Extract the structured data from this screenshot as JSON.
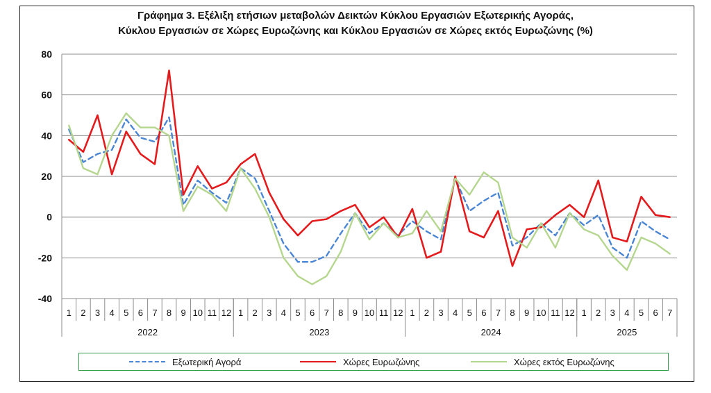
{
  "title_line1": "Γράφημα 3. Εξέλιξη  ετήσιων μεταβολών Δεικτών Κύκλου Εργασιών Εξωτερικής Αγοράς,",
  "title_line2": "Κύκλου Εργασιών σε Χώρες Ευρωζώνης και Κύκλου Εργασιών σε Χώρες εκτός Ευρωζώνης (%)",
  "chart_data": {
    "type": "line",
    "title": "Γράφημα 3. Εξέλιξη  ετήσιων μεταβολών Δεικτών Κύκλου Εργασιών Εξωτερικής Αγοράς, Κύκλου Εργασιών σε Χώρες Ευρωζώνης και Κύκλου Εργασιών σε Χώρες εκτός Ευρωζώνης (%)",
    "ylim": [
      -40,
      80
    ],
    "yticks": [
      -40,
      -20,
      0,
      20,
      40,
      60,
      80
    ],
    "grid": true,
    "legend_position": "bottom",
    "years": [
      {
        "label": "2022",
        "months": 12
      },
      {
        "label": "2023",
        "months": 12
      },
      {
        "label": "2024",
        "months": 12
      },
      {
        "label": "2025",
        "months": 7
      }
    ],
    "categories": [
      "1",
      "2",
      "3",
      "4",
      "5",
      "6",
      "7",
      "8",
      "9",
      "10",
      "11",
      "12",
      "1",
      "2",
      "3",
      "4",
      "5",
      "6",
      "7",
      "8",
      "9",
      "10",
      "11",
      "12",
      "1",
      "2",
      "3",
      "4",
      "5",
      "6",
      "7",
      "8",
      "9",
      "10",
      "11",
      "12",
      "1",
      "2",
      "3",
      "4",
      "5",
      "6",
      "7"
    ],
    "series": [
      {
        "name": "Εξωτερική Αγορά",
        "color": "#4a86d4",
        "dash": true,
        "values": [
          43,
          27,
          31,
          33,
          48,
          39,
          37,
          49,
          6,
          18,
          12,
          7,
          24,
          19,
          3,
          -13,
          -22,
          -22,
          -19,
          -8,
          2,
          -8,
          -3,
          -9,
          -2,
          -7,
          -11,
          19,
          3,
          8,
          12,
          -14,
          -10,
          -3,
          -9,
          2,
          -4,
          1,
          -15,
          -20,
          -2,
          -7,
          -11
        ]
      },
      {
        "name": "Χώρες Ευρωζώνης",
        "color": "#e41a1c",
        "dash": false,
        "values": [
          38,
          32,
          50,
          21,
          42,
          31,
          26,
          72,
          11,
          25,
          14,
          17,
          26,
          31,
          12,
          -1,
          -9,
          -2,
          -1,
          3,
          6,
          -5,
          0,
          -10,
          4,
          -20,
          -17,
          20,
          -7,
          -10,
          3,
          -24,
          -6,
          -5,
          1,
          6,
          0,
          18,
          -10,
          -12,
          10,
          1,
          0
        ]
      },
      {
        "name": "Χώρες εκτός Ευρωζώνης",
        "color": "#b5d68e",
        "dash": false,
        "values": [
          45,
          24,
          21,
          40,
          51,
          44,
          44,
          40,
          3,
          15,
          11,
          3,
          24,
          14,
          0,
          -20,
          -29,
          -33,
          -29,
          -17,
          2,
          -11,
          -3,
          -10,
          -8,
          3,
          -7,
          19,
          11,
          22,
          17,
          -10,
          -15,
          -3,
          -15,
          2,
          -6,
          -9,
          -19,
          -26,
          -10,
          -13,
          -18
        ]
      }
    ]
  }
}
